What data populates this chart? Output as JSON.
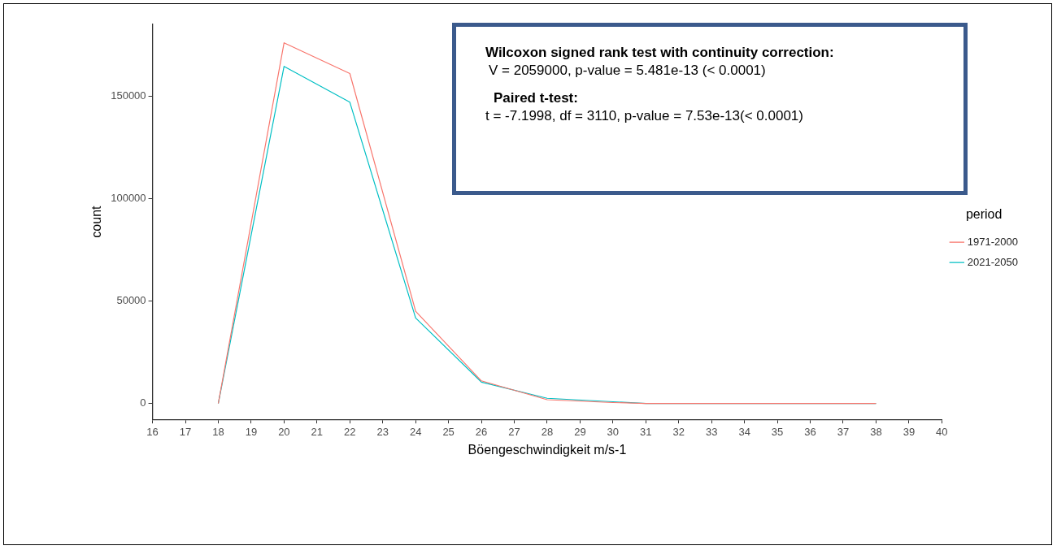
{
  "chart_data": {
    "type": "line",
    "xlabel": "Böengeschwindigkeit m/s-1",
    "ylabel": "count",
    "legend_title": "period",
    "annotations": [
      "Wilcoxon signed rank test with continuity correction:",
      "V = 2059000, p-value = 5.481e-13 (< 0.0001)",
      "Paired t-test:",
      "t = -7.1998, df = 3110, p-value = 7.53e-13(< 0.0001)"
    ],
    "x": [
      18,
      20,
      22,
      24,
      26,
      28,
      30,
      31,
      38
    ],
    "series": [
      {
        "name": "1971-2000",
        "color": "#f8766d",
        "values": [
          0,
          176000,
          161000,
          45000,
          11000,
          1800,
          400,
          0,
          0
        ]
      },
      {
        "name": "2021-2050",
        "color": "#00bfc4",
        "values": [
          0,
          164500,
          147000,
          41700,
          10400,
          2500,
          800,
          0,
          0
        ]
      }
    ],
    "xlim": [
      16,
      40
    ],
    "ylim": [
      -7800,
      185000
    ],
    "xticks": [
      16,
      17,
      18,
      19,
      20,
      21,
      22,
      23,
      24,
      25,
      26,
      27,
      28,
      29,
      30,
      31,
      32,
      33,
      34,
      35,
      36,
      37,
      38,
      39,
      40
    ],
    "yticks": [
      0,
      50000,
      100000,
      150000
    ],
    "grid": false,
    "legend": "right",
    "marker": "none",
    "line_style": "solid"
  }
}
